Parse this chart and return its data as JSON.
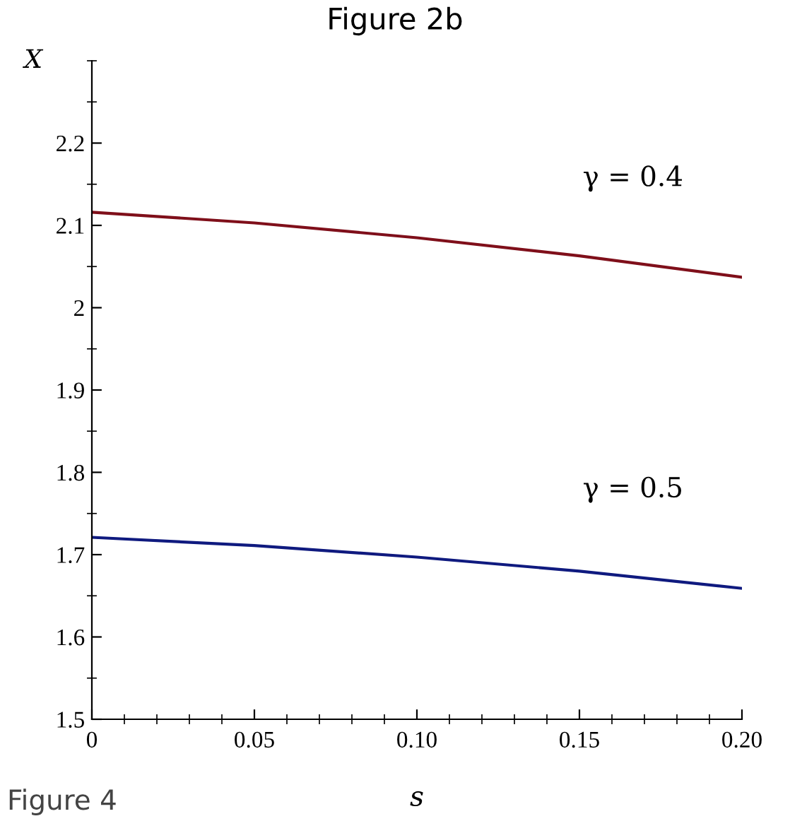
{
  "chart_data": {
    "type": "line",
    "title": "Figure 2b",
    "xlabel": "s",
    "ylabel": "X",
    "x": [
      0,
      0.05,
      0.1,
      0.15,
      0.2
    ],
    "series": [
      {
        "color": "#7f0f1a",
        "values": [
          2.116,
          2.103,
          2.085,
          2.063,
          2.037
        ]
      },
      {
        "color": "#0f1a7f",
        "values": [
          1.721,
          1.711,
          1.697,
          1.68,
          1.659
        ]
      }
    ],
    "xlim": [
      0,
      0.2
    ],
    "ylim": [
      1.5,
      2.3
    ],
    "xticks": [
      0,
      0.05,
      {
        "value": 0.1,
        "label": "0.10"
      },
      0.15,
      {
        "value": 0.2,
        "label": "0.20"
      }
    ],
    "yticks": [
      1.5,
      1.6,
      1.7,
      1.8,
      1.9,
      {
        "value": 2,
        "label": "2"
      },
      2.1,
      2.2
    ],
    "annotations": [
      "γ = 0.4",
      "γ = 0.5",
      "Figure 4"
    ],
    "grid": false,
    "legend": false,
    "marker": "none",
    "line_style": "solid"
  }
}
